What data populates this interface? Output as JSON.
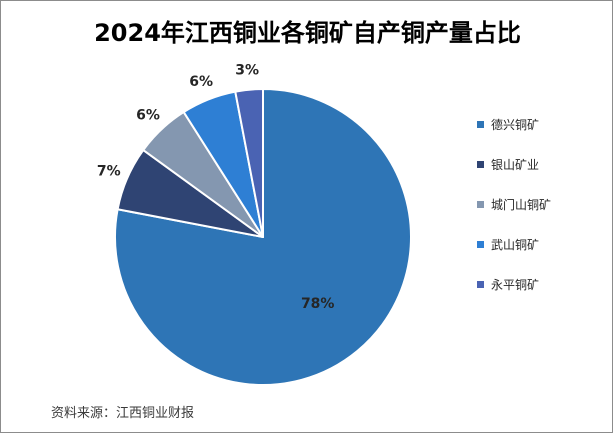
{
  "title": "2024年江西铜业各铜矿自产铜产量占比",
  "source": "资料来源：江西铜业财报",
  "chart_data": {
    "type": "pie",
    "title": "2024年江西铜业各铜矿自产铜产量占比",
    "legend_position": "right",
    "start_angle_deg": 0,
    "direction": "clockwise",
    "slices": [
      {
        "name": "德兴铜矿",
        "value": 78,
        "label": "78%",
        "color": "#2e75b6"
      },
      {
        "name": "银山矿业",
        "value": 7,
        "label": "7%",
        "color": "#2f4473"
      },
      {
        "name": "城门山铜矿",
        "value": 6,
        "label": "6%",
        "color": "#8497b0"
      },
      {
        "name": "武山铜矿",
        "value": 6,
        "label": "6%",
        "color": "#2e7fd4"
      },
      {
        "name": "永平铜矿",
        "value": 3,
        "label": "3%",
        "color": "#4a63b3"
      }
    ]
  }
}
